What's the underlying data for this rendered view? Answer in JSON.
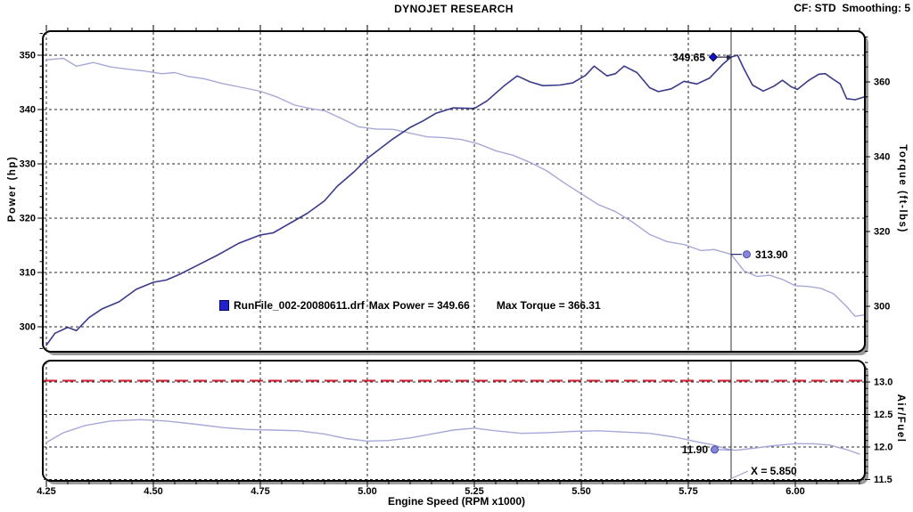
{
  "header": {
    "title": "DYNOJET RESEARCH",
    "cf": "CF: STD  Smoothing: 5"
  },
  "axes": {
    "rpm": {
      "label": "Engine Speed (RPM x1000)",
      "tick_labels": [
        "4.25",
        "4.50",
        "4.75",
        "5.00",
        "5.25",
        "5.50",
        "5.75",
        "6.00"
      ],
      "minor_step": 0.05,
      "range": [
        4.2417,
        6.1625
      ]
    },
    "power": {
      "label": "Power (hp)",
      "tick_labels": [
        "300",
        "310",
        "320",
        "330",
        "340",
        "350"
      ],
      "minor_step": 2,
      "range": [
        295.4,
        354.4
      ]
    },
    "torque": {
      "label": "Torque (ft-lbs)",
      "tick_labels": [
        "300",
        "320",
        "340",
        "360"
      ],
      "minor_step": 4,
      "range": [
        287.9,
        373.6
      ]
    },
    "afr": {
      "label": "Air/Fuel",
      "tick_labels": [
        "11.5",
        "12.0",
        "12.5",
        "13.0"
      ],
      "minor_step": 0.1,
      "range": [
        11.48,
        13.33
      ]
    }
  },
  "legend": {
    "file": "RunFile_002-20080611.drf",
    "max_power": "Max Power = 349.66",
    "max_torque": "Max Torque = 366.31",
    "swatch_color": "#2222cc"
  },
  "cursor": {
    "x_value": 5.85,
    "x_label": "X = 5.850",
    "power": "349.65",
    "torque": "313.90",
    "afr": "11.90"
  },
  "colors": {
    "power_curve": "#3a3a8c",
    "torque_curve": "#a8a8d8",
    "afr_curve": "#a8a8d8",
    "afr_target": "#cc2233",
    "grid": "#2a2a2a",
    "cursor": "#333333",
    "marker_diamond": "#1414cc",
    "marker_dot": "#8585da",
    "frame_shadow": "#9a9a9a"
  },
  "chart_data": [
    {
      "type": "line",
      "title": "Power and Torque vs Engine Speed",
      "xlabel": "Engine Speed (RPM x1000)",
      "xlim": [
        4.2417,
        6.1625
      ],
      "ylim_left": [
        295.4,
        354.4
      ],
      "ylim_right": [
        287.9,
        373.6
      ],
      "grid": true,
      "max_power": 349.66,
      "max_torque": 366.31,
      "series": [
        {
          "name": "Power (hp)",
          "axis": "left",
          "color": "#3a3a8c",
          "points": [
            [
              4.25,
              296.6
            ],
            [
              4.27,
              298.8
            ],
            [
              4.3,
              299.9
            ],
            [
              4.32,
              299.3
            ],
            [
              4.35,
              301.7
            ],
            [
              4.38,
              303.3
            ],
            [
              4.42,
              304.6
            ],
            [
              4.46,
              306.9
            ],
            [
              4.5,
              308.2
            ],
            [
              4.53,
              308.6
            ],
            [
              4.56,
              309.6
            ],
            [
              4.6,
              311.2
            ],
            [
              4.65,
              313.2
            ],
            [
              4.7,
              315.4
            ],
            [
              4.75,
              316.9
            ],
            [
              4.78,
              317.3
            ],
            [
              4.82,
              319.1
            ],
            [
              4.86,
              320.9
            ],
            [
              4.9,
              323.2
            ],
            [
              4.93,
              325.9
            ],
            [
              4.97,
              328.6
            ],
            [
              5.0,
              331.0
            ],
            [
              5.03,
              332.8
            ],
            [
              5.06,
              334.6
            ],
            [
              5.1,
              336.7
            ],
            [
              5.13,
              337.9
            ],
            [
              5.16,
              339.3
            ],
            [
              5.2,
              340.3
            ],
            [
              5.25,
              340.2
            ],
            [
              5.28,
              341.6
            ],
            [
              5.32,
              344.4
            ],
            [
              5.35,
              346.2
            ],
            [
              5.38,
              345.1
            ],
            [
              5.41,
              344.4
            ],
            [
              5.45,
              344.5
            ],
            [
              5.48,
              344.9
            ],
            [
              5.51,
              346.3
            ],
            [
              5.53,
              348.0
            ],
            [
              5.56,
              346.2
            ],
            [
              5.58,
              346.6
            ],
            [
              5.6,
              348.0
            ],
            [
              5.63,
              346.8
            ],
            [
              5.66,
              344.0
            ],
            [
              5.68,
              343.3
            ],
            [
              5.71,
              343.8
            ],
            [
              5.74,
              345.2
            ],
            [
              5.77,
              344.7
            ],
            [
              5.8,
              345.8
            ],
            [
              5.83,
              348.3
            ],
            [
              5.85,
              349.65
            ],
            [
              5.865,
              350.0
            ],
            [
              5.88,
              347.5
            ],
            [
              5.9,
              344.5
            ],
            [
              5.925,
              343.4
            ],
            [
              5.95,
              344.3
            ],
            [
              5.97,
              345.4
            ],
            [
              5.99,
              344.2
            ],
            [
              6.005,
              343.7
            ],
            [
              6.03,
              345.3
            ],
            [
              6.055,
              346.5
            ],
            [
              6.07,
              346.6
            ],
            [
              6.09,
              345.5
            ],
            [
              6.105,
              344.7
            ],
            [
              6.12,
              342.0
            ],
            [
              6.14,
              341.8
            ],
            [
              6.16,
              342.3
            ]
          ]
        },
        {
          "name": "Torque (ft-lbs)",
          "axis": "right",
          "color": "#a8a8d8",
          "points": [
            [
              4.25,
              365.9
            ],
            [
              4.29,
              366.3
            ],
            [
              4.32,
              364.2
            ],
            [
              4.36,
              365.2
            ],
            [
              4.4,
              364.0
            ],
            [
              4.44,
              363.4
            ],
            [
              4.48,
              362.9
            ],
            [
              4.52,
              362.2
            ],
            [
              4.55,
              362.5
            ],
            [
              4.58,
              361.5
            ],
            [
              4.62,
              360.8
            ],
            [
              4.66,
              359.6
            ],
            [
              4.7,
              358.7
            ],
            [
              4.75,
              357.5
            ],
            [
              4.79,
              355.9
            ],
            [
              4.83,
              353.8
            ],
            [
              4.87,
              352.8
            ],
            [
              4.9,
              352.3
            ],
            [
              4.94,
              350.2
            ],
            [
              4.98,
              348.0
            ],
            [
              5.02,
              347.4
            ],
            [
              5.06,
              347.3
            ],
            [
              5.1,
              346.3
            ],
            [
              5.14,
              345.3
            ],
            [
              5.18,
              345.1
            ],
            [
              5.22,
              344.6
            ],
            [
              5.26,
              343.4
            ],
            [
              5.3,
              341.6
            ],
            [
              5.34,
              340.4
            ],
            [
              5.38,
              338.5
            ],
            [
              5.42,
              336.2
            ],
            [
              5.46,
              333.0
            ],
            [
              5.5,
              330.1
            ],
            [
              5.54,
              327.2
            ],
            [
              5.58,
              325.3
            ],
            [
              5.62,
              322.5
            ],
            [
              5.66,
              319.2
            ],
            [
              5.7,
              317.3
            ],
            [
              5.74,
              316.5
            ],
            [
              5.78,
              314.9
            ],
            [
              5.81,
              315.2
            ],
            [
              5.85,
              313.9
            ],
            [
              5.88,
              309.5
            ],
            [
              5.91,
              308.0
            ],
            [
              5.94,
              308.3
            ],
            [
              5.97,
              307.2
            ],
            [
              6.0,
              305.5
            ],
            [
              6.03,
              305.3
            ],
            [
              6.06,
              304.8
            ],
            [
              6.09,
              303.3
            ],
            [
              6.12,
              299.9
            ],
            [
              6.14,
              297.3
            ],
            [
              6.16,
              297.7
            ]
          ]
        }
      ]
    },
    {
      "type": "line",
      "title": "Air/Fuel vs Engine Speed",
      "xlim": [
        4.2417,
        6.1625
      ],
      "ylim": [
        11.48,
        13.33
      ],
      "grid": true,
      "series": [
        {
          "name": "Air/Fuel",
          "color": "#a8a8d8",
          "points": [
            [
              4.25,
              12.07
            ],
            [
              4.29,
              12.22
            ],
            [
              4.34,
              12.33
            ],
            [
              4.4,
              12.4
            ],
            [
              4.47,
              12.42
            ],
            [
              4.53,
              12.4
            ],
            [
              4.6,
              12.35
            ],
            [
              4.66,
              12.3
            ],
            [
              4.72,
              12.27
            ],
            [
              4.78,
              12.26
            ],
            [
              4.84,
              12.25
            ],
            [
              4.9,
              12.2
            ],
            [
              4.95,
              12.13
            ],
            [
              5.0,
              12.09
            ],
            [
              5.05,
              12.1
            ],
            [
              5.1,
              12.14
            ],
            [
              5.15,
              12.2
            ],
            [
              5.2,
              12.26
            ],
            [
              5.25,
              12.29
            ],
            [
              5.3,
              12.25
            ],
            [
              5.36,
              12.21
            ],
            [
              5.42,
              12.22
            ],
            [
              5.48,
              12.24
            ],
            [
              5.54,
              12.25
            ],
            [
              5.6,
              12.23
            ],
            [
              5.66,
              12.21
            ],
            [
              5.72,
              12.15
            ],
            [
              5.77,
              12.08
            ],
            [
              5.81,
              12.03
            ],
            [
              5.84,
              11.97
            ],
            [
              5.86,
              11.95
            ],
            [
              5.9,
              11.98
            ],
            [
              5.95,
              12.02
            ],
            [
              6.0,
              12.05
            ],
            [
              6.04,
              12.05
            ],
            [
              6.08,
              12.03
            ],
            [
              6.12,
              11.96
            ],
            [
              6.15,
              11.89
            ]
          ]
        },
        {
          "name": "AFR target line",
          "color": "#cc2233",
          "style": "dashed",
          "value": 13.0
        }
      ]
    }
  ]
}
